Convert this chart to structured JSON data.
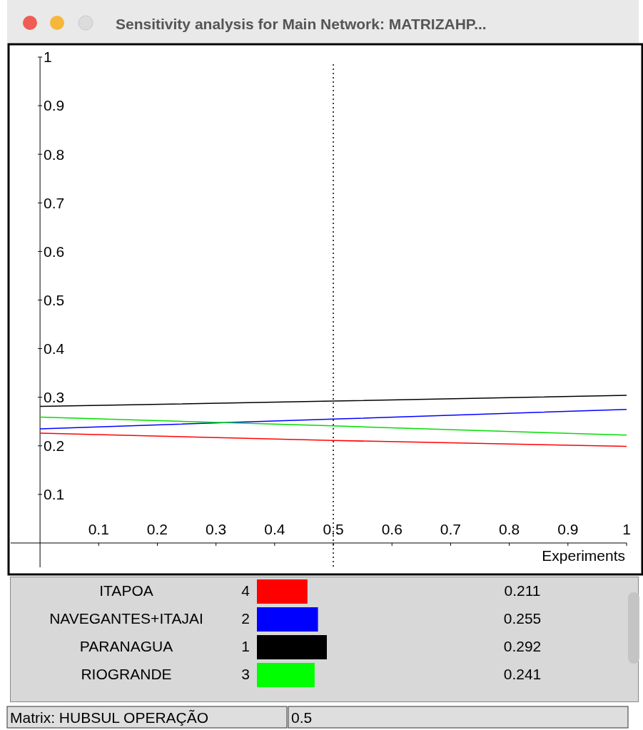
{
  "chart_data": [
    {
      "type": "line",
      "title": "Sensitivity analysis for Main Network: MATRIZAHP...",
      "xlabel": "Experiments",
      "x": [
        0,
        0.5,
        1
      ],
      "series": [
        {
          "color": "#000000",
          "values": [
            0.281,
            0.292,
            0.304
          ]
        },
        {
          "color": "#0000ff",
          "values": [
            0.235,
            0.255,
            0.275
          ]
        },
        {
          "color": "#00dd00",
          "values": [
            0.259,
            0.241,
            0.222
          ]
        },
        {
          "color": "#ff0000",
          "values": [
            0.226,
            0.211,
            0.199
          ]
        }
      ],
      "xlim": [
        -0.05,
        1
      ],
      "ylim": [
        -0.05,
        1
      ],
      "xticks": [
        0.1,
        0.2,
        0.3,
        0.4,
        0.5,
        0.6,
        0.7,
        0.8,
        0.9,
        1
      ],
      "yticks": [
        0.1,
        0.2,
        0.3,
        0.4,
        0.5,
        0.6,
        0.7,
        0.8,
        0.9,
        1
      ],
      "ref_lines": [
        {
          "axis": "x",
          "value": 0.5,
          "line_style": "dotted",
          "color": "#000000"
        }
      ],
      "grid": false,
      "marker": "none",
      "line_style": "solid",
      "annotations": [
        "Matrix: HUBSUL OPERAÇÃO",
        "0.5"
      ]
    },
    {
      "type": "bar",
      "orientation": "horizontal",
      "categories": [
        "ITAPOA",
        "NAVEGANTES+ITAJAI",
        "PARANAGUA",
        "RIOGRANDE"
      ],
      "values": [
        0.211,
        0.255,
        0.292,
        0.241
      ],
      "colors": [
        "#ff0000",
        "#0000ff",
        "#000000",
        "#00ff00"
      ],
      "data_labels": true,
      "annotations": [
        "4",
        "2",
        "1",
        "3"
      ]
    }
  ]
}
